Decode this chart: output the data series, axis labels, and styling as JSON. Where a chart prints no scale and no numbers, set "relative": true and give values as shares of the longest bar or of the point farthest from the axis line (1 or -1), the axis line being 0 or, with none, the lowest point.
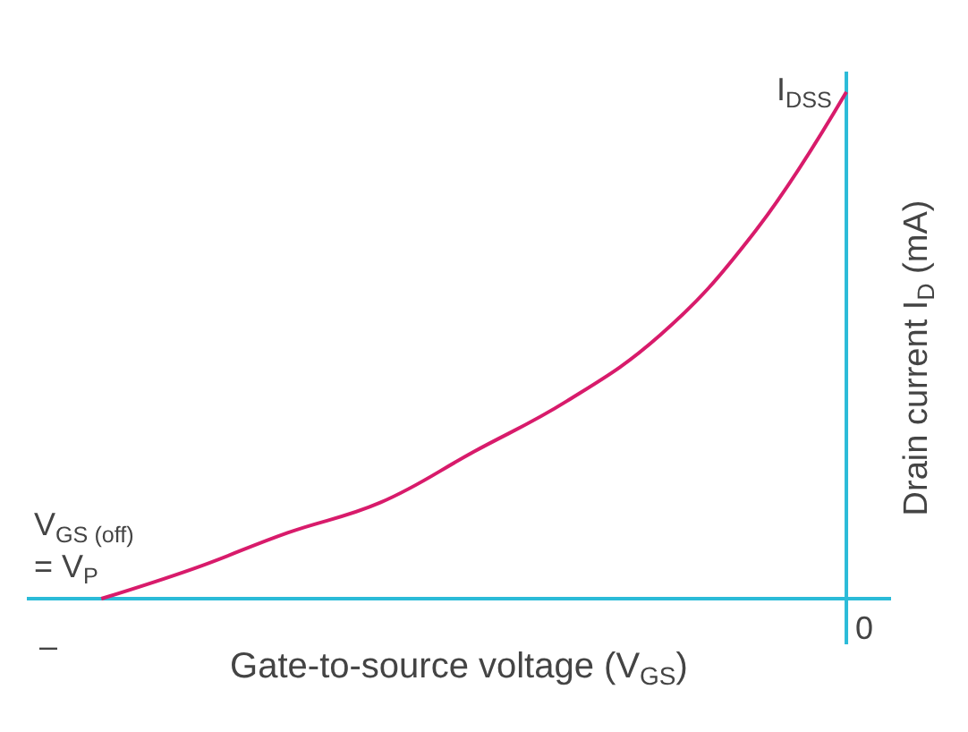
{
  "chart_data": {
    "type": "line",
    "relative": true,
    "xlabel": "Gate-to-source voltage (V$_{GS}$)",
    "ylabel": "Drain current I$_{D}$ (mA)",
    "categories": [
      null,
      null,
      null,
      null,
      null,
      null,
      null,
      null,
      null
    ],
    "series": [
      {
        "color": "#d81b6b",
        "values": [
          0,
          0.06,
          0.13,
          0.19,
          0.29,
          0.39,
          0.52,
          0.72,
          1
        ]
      }
    ],
    "annotations": [
      "I$_{DSS}$",
      "V$_{GS (off)}$\n= V$_{P}$",
      "0",
      "–"
    ],
    "marker": "none",
    "line_style": "solid"
  }
}
